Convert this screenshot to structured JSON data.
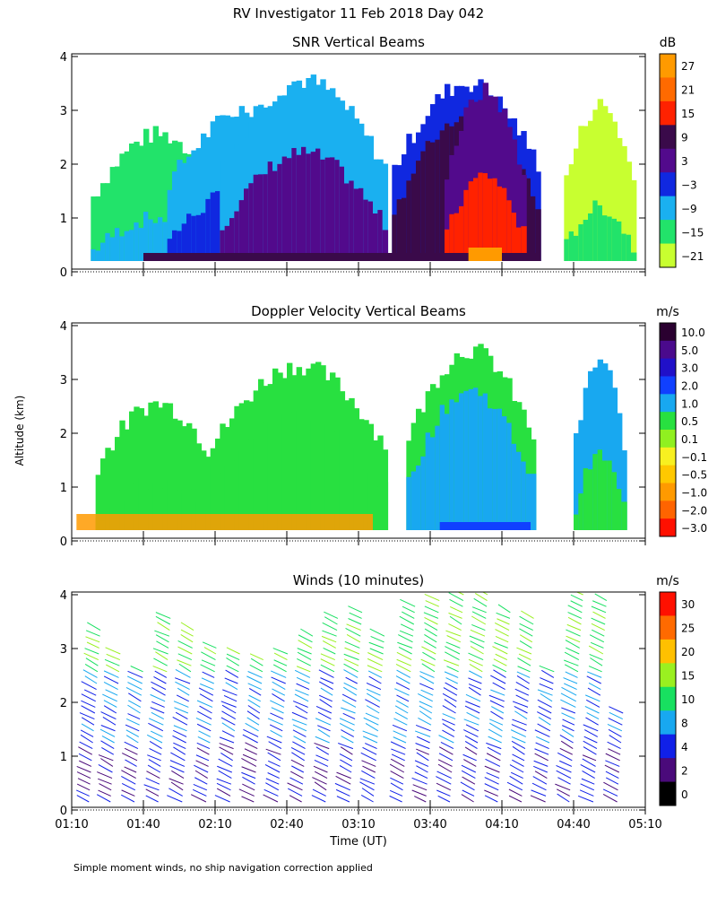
{
  "chart_data": {
    "type": "heatmap",
    "title": "RV Investigator  11 Feb 2018 Day 042",
    "xlabel": "Time (UT)",
    "ylabel": "Altitude (km)",
    "footnote": "Simple moment winds, no ship navigation correction applied",
    "x_ticks": [
      "01:10",
      "01:40",
      "02:10",
      "02:40",
      "03:10",
      "03:40",
      "04:10",
      "04:40",
      "05:10"
    ],
    "x_minutes": [
      70,
      100,
      130,
      160,
      190,
      220,
      250,
      280,
      310
    ],
    "xlim_minutes": [
      70,
      310
    ],
    "y_ticks": [
      "0",
      "1",
      "2",
      "3",
      "4"
    ],
    "ylim_km": [
      0,
      4
    ],
    "panels": [
      {
        "title": "SNR Vertical Beams",
        "unit": "dB",
        "colorbar_labels": [
          "27",
          "21",
          "15",
          "9",
          "3",
          "−3",
          "−9",
          "−15",
          "−21"
        ],
        "colorbar_colors": [
          "#ff9a00",
          "#ff6a00",
          "#ff2200",
          "#3a0a4a",
          "#520a8c",
          "#1028e0",
          "#1ab0f0",
          "#22e36a",
          "#c8ff30"
        ],
        "cloud_profiles": [
          {
            "from": 78,
            "to": 132,
            "top": 2.55,
            "mid": 1.0,
            "fill": "#22e36a",
            "core": "#1ab0f0"
          },
          {
            "from": 110,
            "to": 180,
            "top": 3.05,
            "mid": 1.6,
            "fill": "#1ab0f0",
            "core": "#1028e0"
          },
          {
            "from": 132,
            "to": 200,
            "top": 3.55,
            "mid": 2.2,
            "fill": "#1ab0f0",
            "core": "#520a8c"
          },
          {
            "from": 204,
            "to": 265,
            "top": 3.5,
            "mid": 2.9,
            "fill": "#1028e0",
            "core": "#3a0a4a"
          },
          {
            "from": 226,
            "to": 258,
            "top": 3.35,
            "mid": 1.8,
            "fill": "#520a8c",
            "core": "#ff2200"
          },
          {
            "from": 276,
            "to": 304,
            "top": 3.1,
            "mid": 1.2,
            "fill": "#c8ff30",
            "core": "#22e36a"
          }
        ]
      },
      {
        "title": "Doppler Velocity Vertical Beams",
        "unit": "m/s",
        "colorbar_labels": [
          "10.0",
          "5.0",
          "3.0",
          "2.0",
          "1.0",
          "0.5",
          "0.1",
          "−0.1",
          "−0.5",
          "−1.0",
          "−2.0",
          "−3.0"
        ],
        "colorbar_colors": [
          "#2a0030",
          "#4a0a8c",
          "#2010c8",
          "#1040ff",
          "#18a8f0",
          "#28e040",
          "#90f020",
          "#f8f020",
          "#ffc800",
          "#ff9a00",
          "#ff6400",
          "#ff1000"
        ],
        "cloud_profiles": [
          {
            "from": 80,
            "to": 130,
            "top": 2.55,
            "mid": 1.1,
            "fill": "#28e040",
            "core": "#28e040"
          },
          {
            "from": 128,
            "to": 200,
            "top": 3.25,
            "mid": 2.4,
            "fill": "#28e040",
            "core": "#28e040"
          },
          {
            "from": 210,
            "to": 262,
            "top": 3.55,
            "mid": 2.8,
            "fill": "#28e040",
            "core": "#18a8f0"
          },
          {
            "from": 280,
            "to": 300,
            "top": 3.35,
            "mid": 1.6,
            "fill": "#18a8f0",
            "core": "#28e040"
          }
        ]
      },
      {
        "title": "Winds (10 minutes)",
        "unit": "m/s",
        "colorbar_labels": [
          "30",
          "25",
          "20",
          "15",
          "10",
          "8",
          "4",
          "2",
          "0"
        ],
        "colorbar_colors": [
          "#ff1000",
          "#ff6a00",
          "#ffc000",
          "#9af020",
          "#18e060",
          "#18a8f0",
          "#1020e8",
          "#4a0a7a",
          "#000000"
        ],
        "profile_times_minutes": [
          77,
          86,
          96,
          106,
          116,
          126,
          136,
          146,
          156,
          166,
          176,
          186,
          196,
          208,
          218,
          228,
          238,
          248,
          258,
          268,
          278,
          288,
          298
        ],
        "profile_tops_km": [
          3.4,
          2.9,
          2.6,
          3.6,
          3.4,
          3.1,
          2.9,
          2.8,
          3.0,
          3.3,
          3.6,
          3.7,
          3.3,
          3.8,
          3.9,
          4.0,
          4.0,
          3.7,
          3.6,
          2.6,
          4.0,
          3.9,
          1.9
        ]
      }
    ]
  }
}
